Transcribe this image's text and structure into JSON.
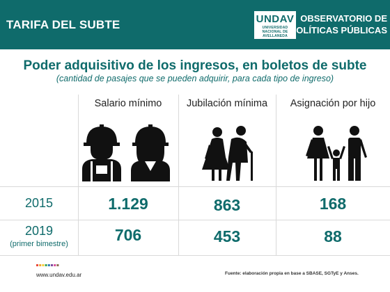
{
  "header": {
    "title": "TARIFA DEL SUBTE",
    "logo_main": "UNDAV",
    "logo_sub_1": "UNIVERSIDAD",
    "logo_sub_2": "NACIONAL DE",
    "logo_sub_3": "AVELLANEDA",
    "observatory_line1": "OBSERVATORIO DE",
    "observatory_line2": "POLÍTICAS PÚBLICAS"
  },
  "colors": {
    "teal": "#0f6b6b",
    "white": "#ffffff"
  },
  "chart_data": {
    "type": "table",
    "title": "Poder adquisitivo de los ingresos, en boletos de subte",
    "subtitle": "(cantidad de pasajes que se pueden adquirir, para cada tipo de ingreso)",
    "columns": [
      "Salario mínimo",
      "Jubilación mínima",
      "Asignación por hijo"
    ],
    "column_icons": [
      "workers-icon",
      "elderly-couple-icon",
      "family-icon"
    ],
    "rows": [
      {
        "year": "2015",
        "note": "",
        "values": [
          "1.129",
          "863",
          "168"
        ]
      },
      {
        "year": "2019",
        "note": "(primer bimestre)",
        "values": [
          "706",
          "453",
          "88"
        ]
      }
    ]
  },
  "footer": {
    "website": "www.undav.edu.ar",
    "source": "Fuente: elaboración propia en base a SBASE, SGTyE y Anses.",
    "dot_colors": [
      "#e94b3c",
      "#f0a830",
      "#f5d13a",
      "#3aa655",
      "#2b7bb9",
      "#7d4a9e",
      "#d94e9a",
      "#8c6b4f"
    ]
  }
}
